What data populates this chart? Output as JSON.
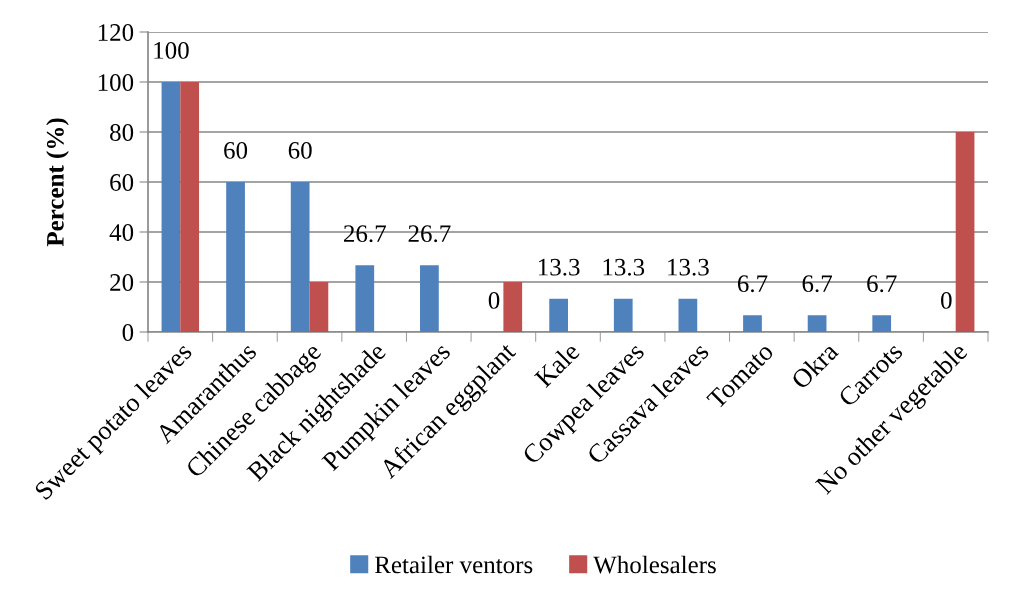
{
  "chart_data": {
    "type": "bar",
    "ylabel": "Percent (%)",
    "categories": [
      "Sweet potato leaves",
      "Amaranthus",
      "Chinese cabbage",
      "Black nightshade",
      "Pumpkin leaves",
      "African eggplant",
      "Kale",
      "Cowpea leaves",
      "Cassava leaves",
      "Tomato",
      "Okra",
      "Carrots",
      "No other vegetable"
    ],
    "series": [
      {
        "name": "Retailer ventors",
        "color": "#4f81bd",
        "values": [
          100,
          60,
          60,
          26.7,
          26.7,
          0,
          13.3,
          13.3,
          13.3,
          6.7,
          6.7,
          6.7,
          0
        ],
        "value_labels": [
          "100",
          "60",
          "60",
          "26.7",
          "26.7",
          "0",
          "13.3",
          "13.3",
          "13.3",
          "6.7",
          "6.7",
          "6.7",
          "0"
        ]
      },
      {
        "name": "Wholesalers",
        "color": "#c0504d",
        "values": [
          100,
          0,
          20,
          0,
          0,
          20,
          0,
          0,
          0,
          0,
          0,
          0,
          80
        ]
      }
    ],
    "ylim": [
      0,
      120
    ],
    "yticks": [
      0,
      20,
      40,
      60,
      80,
      100,
      120
    ],
    "grid": "y",
    "legend": "bottom"
  }
}
